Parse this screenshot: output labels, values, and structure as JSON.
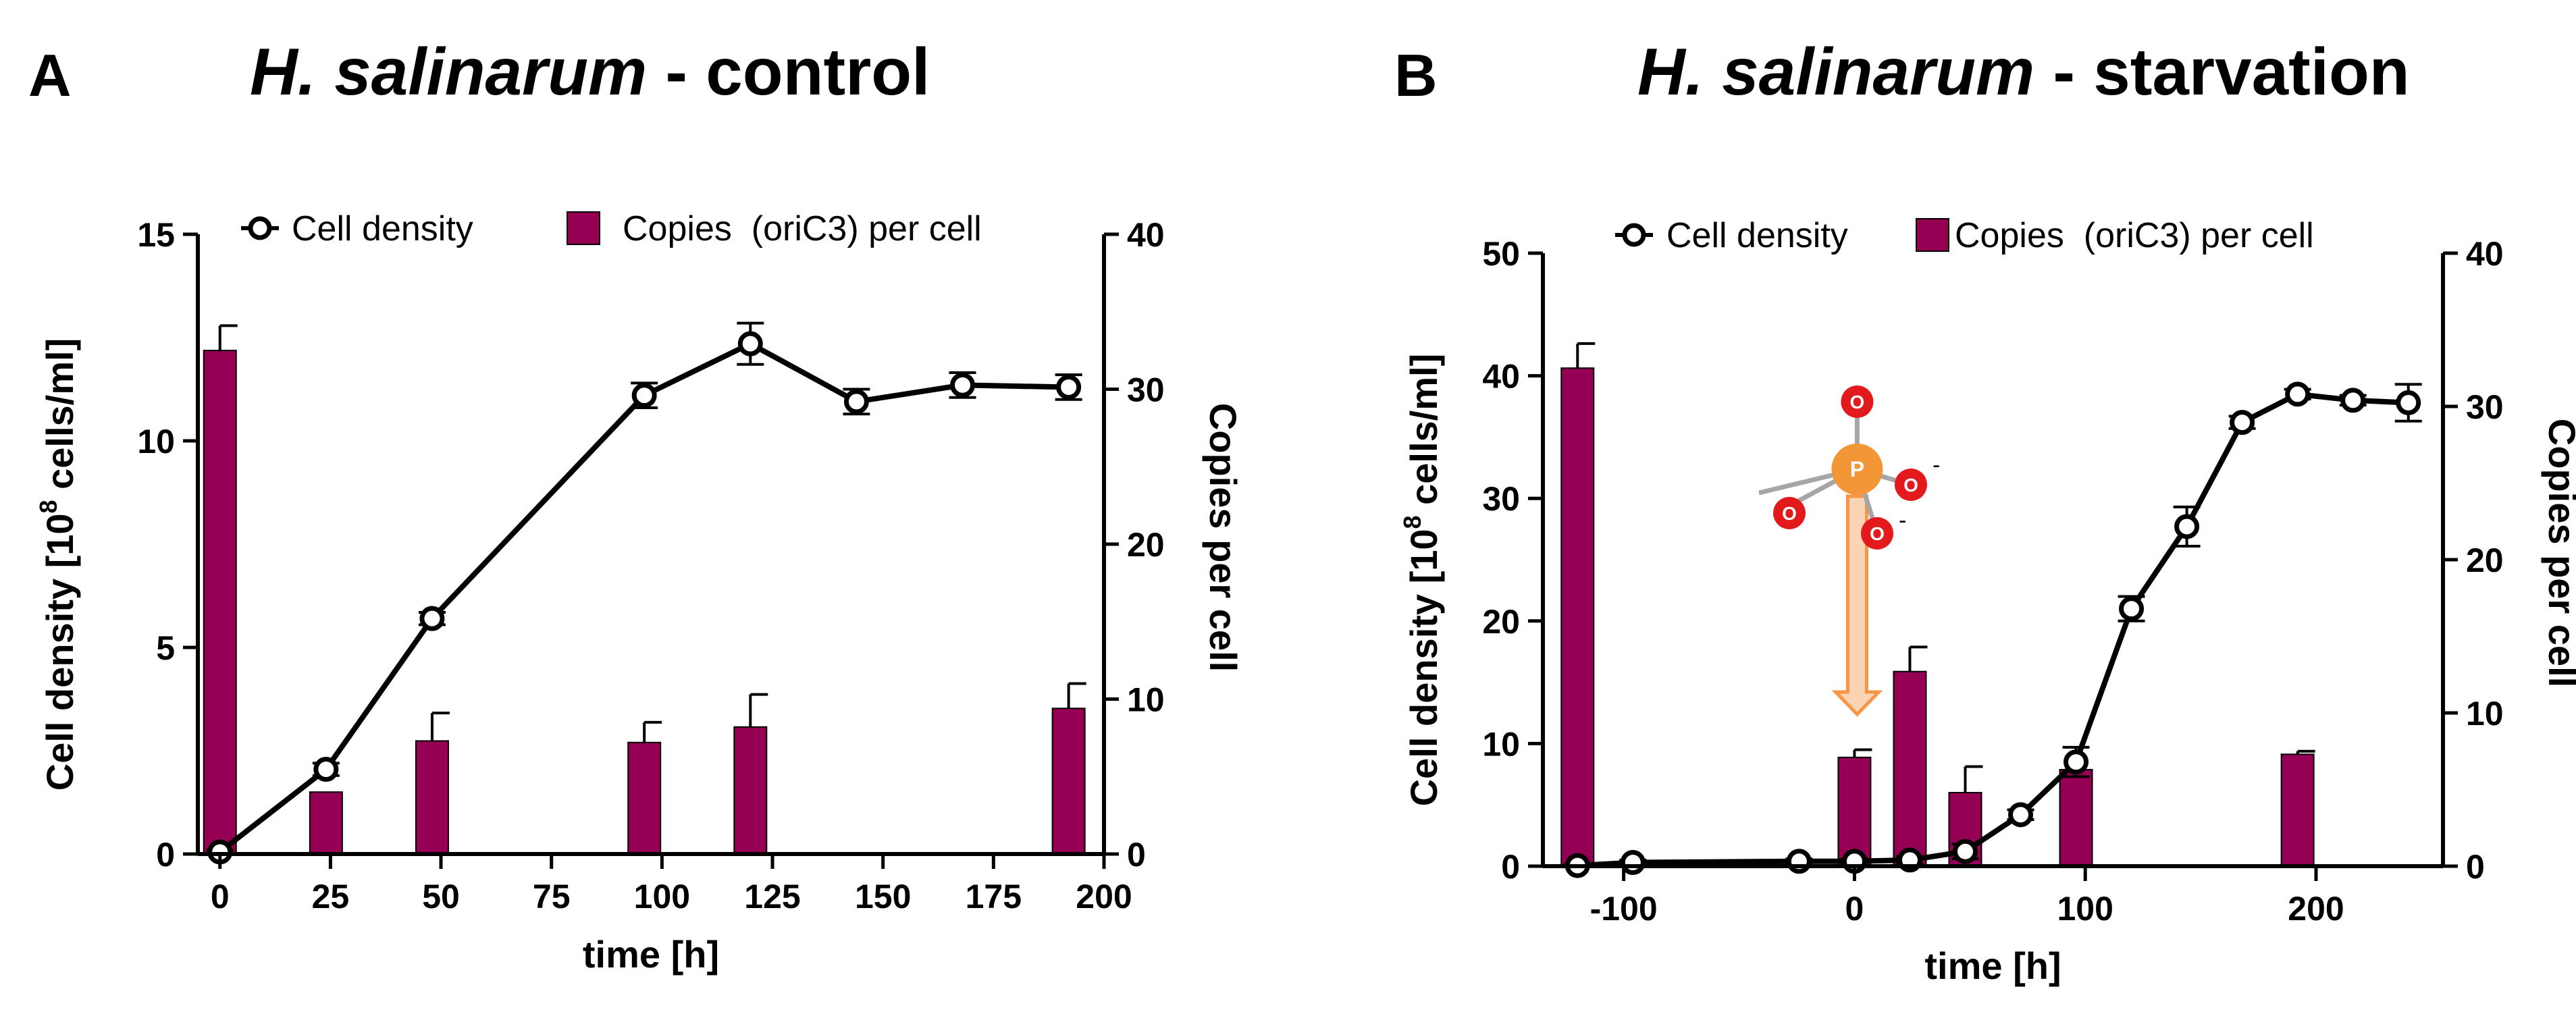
{
  "chart_data": [
    {
      "panel": "A",
      "type": "bar+line",
      "title_species": "H. salinarum",
      "title_condition": " - control",
      "xlabel": "time [h]",
      "ylabel_left_pre": "Cell density [10",
      "ylabel_left_sup": "8",
      "ylabel_left_post": " cells/ml]",
      "ylabel_right": "Copies per cell",
      "xlim": [
        -5,
        200
      ],
      "ylim_left": [
        0,
        15
      ],
      "ylim_right": [
        0,
        40
      ],
      "xticks": [
        0,
        25,
        50,
        75,
        100,
        125,
        150,
        175,
        200
      ],
      "yticks_left": [
        0,
        5,
        10,
        15
      ],
      "yticks_right": [
        0,
        10,
        20,
        30,
        40
      ],
      "legend": {
        "line": "Cell density",
        "bar": "Copies  (oriC3) per cell",
        "placement": "top"
      },
      "bar_color": "#950055",
      "line_series": {
        "name": "Cell density",
        "x": [
          0,
          24,
          48,
          96,
          120,
          144,
          168,
          192
        ],
        "y": [
          0.05,
          2.05,
          5.7,
          11.1,
          12.35,
          10.95,
          11.35,
          11.3
        ],
        "err": [
          0.05,
          0.15,
          0.15,
          0.3,
          0.5,
          0.3,
          0.3,
          0.3
        ]
      },
      "bar_series": {
        "name": "Copies  (oriC3) per cell",
        "x": [
          0,
          24,
          48,
          96,
          120,
          192
        ],
        "y": [
          32.5,
          4.0,
          7.3,
          7.2,
          8.2,
          9.4
        ],
        "err": [
          1.6,
          0,
          1.8,
          1.3,
          2.1,
          1.6
        ]
      }
    },
    {
      "panel": "B",
      "type": "bar+line",
      "title_species": "H. salinarum",
      "title_condition": " - starvation",
      "xlabel": "time [h]",
      "ylabel_left_pre": "Cell density [10",
      "ylabel_left_sup": "8",
      "ylabel_left_post": " cells/ml]",
      "ylabel_right": "Copies per cell",
      "xlim": [
        -135,
        255
      ],
      "ylim_left": [
        0,
        50
      ],
      "ylim_right": [
        0,
        40
      ],
      "xticks": [
        -100,
        0,
        100,
        200
      ],
      "yticks_left": [
        0,
        10,
        20,
        30,
        40,
        50
      ],
      "yticks_right": [
        0,
        10,
        20,
        30,
        40
      ],
      "legend": {
        "line": "Cell density",
        "bar": "Copies  (oriC3) per cell",
        "placement": "top"
      },
      "bar_color": "#950055",
      "line_series": {
        "name": "Cell density",
        "x": [
          -120,
          -96,
          -24,
          0,
          24,
          48,
          72,
          96,
          120,
          144,
          168,
          192,
          216,
          240
        ],
        "y": [
          0.05,
          0.3,
          0.4,
          0.4,
          0.5,
          1.2,
          4.2,
          8.5,
          21,
          27.7,
          36.2,
          38.5,
          38,
          37.8
        ],
        "err": [
          0.1,
          0.2,
          0.2,
          0.2,
          0.3,
          0.6,
          0.4,
          1.2,
          1.0,
          1.6,
          0.5,
          0.4,
          0.4,
          1.5
        ]
      },
      "bar_series": {
        "name": "Copies  (oriC3) per cell",
        "x": [
          -120,
          0,
          24,
          48,
          96,
          192
        ],
        "y": [
          32.5,
          7.1,
          12.7,
          4.8,
          6.3,
          7.3
        ],
        "err": [
          1.6,
          0.5,
          1.6,
          1.7,
          0,
          0.2
        ]
      },
      "annotation": {
        "type": "phosphate-molecule-arrow",
        "x": 0,
        "atoms": {
          "center": "P",
          "oxygen": "O",
          "charge": "-"
        },
        "arrow_color": "#f79646",
        "center_color": "#f29637",
        "oxygen_color": "#e31a1c"
      }
    }
  ]
}
